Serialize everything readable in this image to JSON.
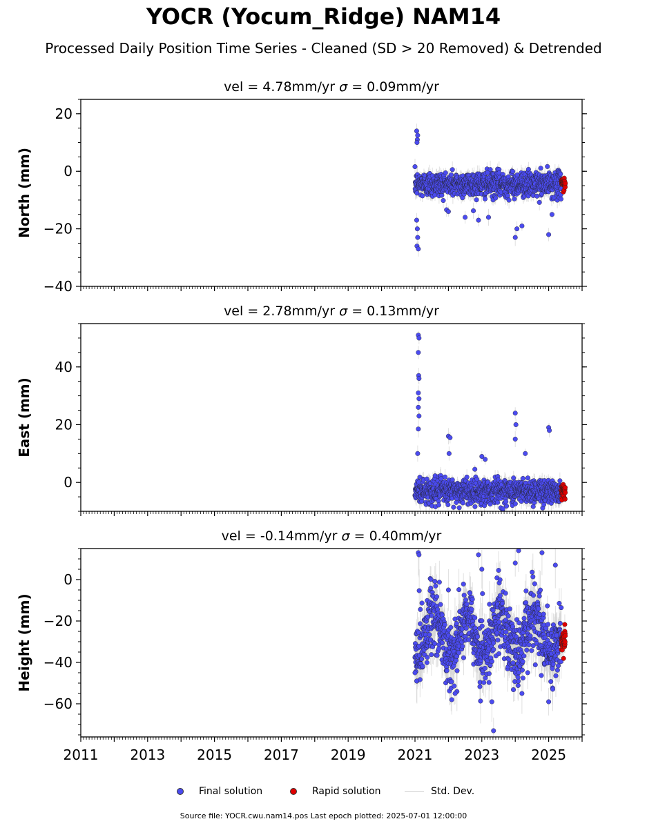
{
  "title": "YOCR (Yocum_Ridge) NAM14",
  "subtitle": "Processed Daily Position Time Series - Cleaned (SD > 20 Removed) & Detrended",
  "footer": "Source file: YOCR.cwu.nam14.pos  Last epoch plotted: 2025-07-01 12:00:00",
  "legend": {
    "final": "Final solution",
    "rapid": "Rapid solution",
    "std": "Std. Dev."
  },
  "colors": {
    "final": "#4b4bf0",
    "rapid": "#e00000",
    "std": "#d3d3d3"
  },
  "chart_data": [
    {
      "type": "scatter",
      "title_prefix": "vel = 4.78mm/yr",
      "title_sigma": "= 0.09mm/yr",
      "ylabel": "North (mm)",
      "xlim": [
        2011,
        2026
      ],
      "ylim": [
        -40,
        25
      ],
      "yticks": [
        "20",
        "0",
        "−20",
        "−40"
      ],
      "ytick_values": [
        20,
        0,
        -20,
        -40
      ],
      "series": [
        {
          "kind": "final",
          "x_start": 2021.0,
          "x_end": 2025.38,
          "baseline": -4.5,
          "spread": 2.2,
          "outliers": [
            [
              2021.05,
              14
            ],
            [
              2021.07,
              11
            ],
            [
              2021.08,
              12.5
            ],
            [
              2021.06,
              10
            ],
            [
              2021.05,
              -17
            ],
            [
              2021.07,
              -20
            ],
            [
              2021.08,
              -23
            ],
            [
              2021.06,
              -26
            ],
            [
              2021.1,
              -27
            ],
            [
              2022.0,
              -14
            ],
            [
              2022.5,
              -16
            ],
            [
              2022.9,
              -17
            ],
            [
              2023.2,
              -16
            ],
            [
              2024.0,
              -23
            ],
            [
              2024.05,
              -20
            ],
            [
              2024.2,
              -19
            ],
            [
              2025.0,
              -22
            ],
            [
              2025.1,
              -15
            ]
          ]
        },
        {
          "kind": "rapid",
          "x_start": 2025.38,
          "x_end": 2025.5,
          "baseline": -4.2,
          "spread": 1.0
        }
      ]
    },
    {
      "type": "scatter",
      "title_prefix": "vel = 2.78mm/yr",
      "title_sigma": "= 0.13mm/yr",
      "ylabel": "East (mm)",
      "xlim": [
        2011,
        2026
      ],
      "ylim": [
        -10,
        55
      ],
      "yticks": [
        "40",
        "20",
        "0"
      ],
      "ytick_values": [
        40,
        20,
        0
      ],
      "series": [
        {
          "kind": "final",
          "x_start": 2021.0,
          "x_end": 2025.38,
          "baseline": -3.0,
          "spread": 2.2,
          "outliers": [
            [
              2021.1,
              51
            ],
            [
              2021.12,
              50
            ],
            [
              2021.1,
              45
            ],
            [
              2021.11,
              37
            ],
            [
              2021.12,
              36
            ],
            [
              2021.1,
              31
            ],
            [
              2021.12,
              29
            ],
            [
              2021.1,
              26
            ],
            [
              2021.12,
              23
            ],
            [
              2021.1,
              18.5
            ],
            [
              2021.08,
              10
            ],
            [
              2022.0,
              16
            ],
            [
              2022.05,
              15.5
            ],
            [
              2022.02,
              10
            ],
            [
              2024.0,
              24
            ],
            [
              2024.02,
              20
            ],
            [
              2024.0,
              15
            ],
            [
              2025.0,
              19
            ],
            [
              2025.02,
              18
            ],
            [
              2023.0,
              9
            ],
            [
              2023.1,
              8
            ],
            [
              2023.25,
              -7.5
            ],
            [
              2024.3,
              10
            ]
          ]
        },
        {
          "kind": "rapid",
          "x_start": 2025.38,
          "x_end": 2025.5,
          "baseline": -3.0,
          "spread": 1.2
        }
      ]
    },
    {
      "type": "scatter",
      "title_prefix": "vel = -0.14mm/yr",
      "title_sigma": "= 0.40mm/yr",
      "ylabel": "Height (mm)",
      "xlim": [
        2011,
        2026
      ],
      "ylim": [
        -76,
        15
      ],
      "yticks": [
        "0",
        "−20",
        "−40",
        "−60"
      ],
      "ytick_values": [
        0,
        -20,
        -40,
        -60
      ],
      "xticks": [
        "2011",
        "2013",
        "2015",
        "2017",
        "2019",
        "2021",
        "2023",
        "2025"
      ],
      "xtick_values": [
        2011,
        2013,
        2015,
        2017,
        2019,
        2021,
        2023,
        2025
      ],
      "series": [
        {
          "kind": "final",
          "x_start": 2021.0,
          "x_end": 2025.38,
          "baseline": -27,
          "spread": 8,
          "seasonal_amp": 10,
          "outliers": [
            [
              2021.1,
              13
            ],
            [
              2021.12,
              12
            ],
            [
              2022.0,
              -5
            ],
            [
              2022.1,
              -58
            ],
            [
              2022.2,
              -55
            ],
            [
              2022.9,
              12
            ],
            [
              2023.0,
              5
            ],
            [
              2023.3,
              -59
            ],
            [
              2023.35,
              -73
            ],
            [
              2024.0,
              8
            ],
            [
              2024.1,
              14
            ],
            [
              2024.2,
              -55
            ],
            [
              2024.8,
              13
            ],
            [
              2025.0,
              -59
            ],
            [
              2025.2,
              7
            ],
            [
              2021.0,
              -45
            ],
            [
              2021.05,
              -49
            ]
          ]
        },
        {
          "kind": "rapid",
          "x_start": 2025.38,
          "x_end": 2025.5,
          "baseline": -30,
          "spread": 3.5
        }
      ]
    }
  ]
}
